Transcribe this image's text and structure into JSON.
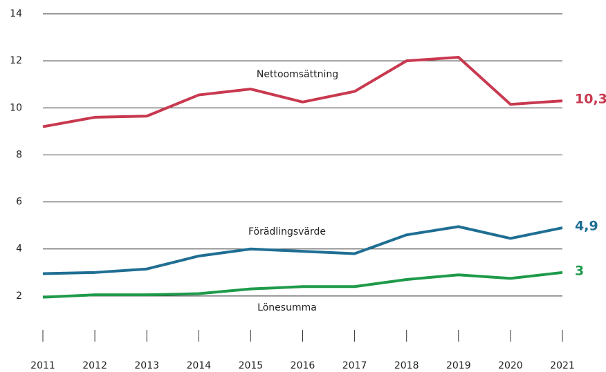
{
  "chart_data": {
    "type": "line",
    "x": [
      2011,
      2012,
      2013,
      2014,
      2015,
      2016,
      2017,
      2018,
      2019,
      2020,
      2021
    ],
    "xticks": [
      2011,
      2012,
      2013,
      2014,
      2015,
      2016,
      2017,
      2018,
      2019,
      2020,
      2021
    ],
    "xlim": [
      2011,
      2021
    ],
    "ylim": [
      0.5,
      14
    ],
    "yticks": [
      2,
      4,
      6,
      8,
      10,
      12,
      14
    ],
    "grid": true,
    "series": [
      {
        "name": "Nettoomsättning",
        "color": "#c8394f",
        "values": [
          9.2,
          9.6,
          9.65,
          10.55,
          10.8,
          10.25,
          10.7,
          12.0,
          12.15,
          10.15,
          10.3
        ],
        "value_labels": [
          null,
          null,
          null,
          null,
          null,
          null,
          null,
          null,
          null,
          null,
          "10,3"
        ]
      },
      {
        "name": "Förädlingsvärde",
        "color": "#1f6e93",
        "values": [
          2.95,
          3.0,
          3.15,
          3.7,
          4.0,
          3.9,
          3.8,
          4.6,
          4.95,
          4.45,
          4.9
        ],
        "value_labels": [
          null,
          null,
          null,
          null,
          null,
          null,
          null,
          null,
          null,
          null,
          "4,9"
        ]
      },
      {
        "name": "Lönesumma",
        "color": "#1e9a4a",
        "values": [
          1.95,
          2.05,
          2.05,
          2.1,
          2.3,
          2.4,
          2.4,
          2.7,
          2.9,
          2.75,
          3.0
        ],
        "value_labels": [
          null,
          null,
          null,
          null,
          null,
          null,
          null,
          null,
          null,
          null,
          "3"
        ]
      }
    ]
  }
}
